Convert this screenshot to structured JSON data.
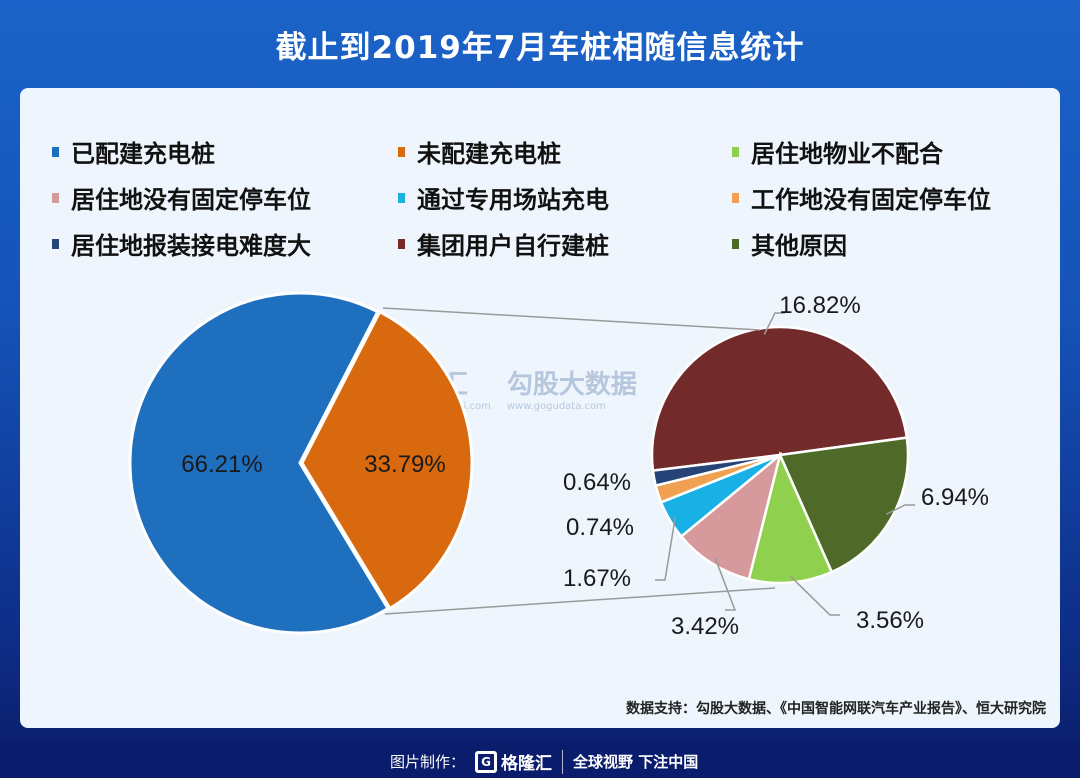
{
  "title": "截止到2019年7月车桩相随信息统计",
  "source": "数据支持：勾股大数据、《中国智能网联汽车产业报告》、恒大研究院",
  "footer": {
    "label": "图片制作：",
    "logo": "格隆汇",
    "slogan": "全球视野 下注中国"
  },
  "watermark": {
    "brand1": "格隆汇",
    "brand1_url": "www.gelonghui.com",
    "brand2": "勾股大数据",
    "brand2_url": "www.gogudata.com"
  },
  "legend": [
    {
      "label": "已配建充电桩",
      "color": "#1f6fbf"
    },
    {
      "label": "未配建充电桩",
      "color": "#d9690f"
    },
    {
      "label": "居住地物业不配合",
      "color": "#8fd14f"
    },
    {
      "label": "居住地没有固定停车位",
      "color": "#d79a9c"
    },
    {
      "label": "通过专用场站充电",
      "color": "#19b0e6"
    },
    {
      "label": "工作地没有固定停车位",
      "color": "#f0a050"
    },
    {
      "label": "居住地报装接电难度大",
      "color": "#264478"
    },
    {
      "label": "集团用户自行建桩",
      "color": "#7a2828"
    },
    {
      "label": "其他原因",
      "color": "#4f6a28"
    }
  ],
  "chart_data": [
    {
      "type": "pie",
      "slices": [
        {
          "name": "已配建充电桩",
          "value": 66.21,
          "label": "66.21%",
          "color": "#1f6fbf"
        },
        {
          "name": "未配建充电桩",
          "value": 33.79,
          "label": "33.79%",
          "color": "#d9690f"
        }
      ]
    },
    {
      "type": "pie",
      "note_breakdown_of": "未配建充电桩",
      "slices": [
        {
          "name": "集团用户自行建桩",
          "value": 16.82,
          "label": "16.82%",
          "color": "#732a2a"
        },
        {
          "name": "其他原因",
          "value": 6.94,
          "label": "6.94%",
          "color": "#4f6a28"
        },
        {
          "name": "居住地物业不配合",
          "value": 3.56,
          "label": "3.56%",
          "color": "#8fd14f"
        },
        {
          "name": "居住地没有固定停车位",
          "value": 3.42,
          "label": "3.42%",
          "color": "#d79a9c"
        },
        {
          "name": "通过专用场站充电",
          "value": 1.67,
          "label": "1.67%",
          "color": "#19b0e6"
        },
        {
          "name": "工作地没有固定停车位",
          "value": 0.74,
          "label": "0.74%",
          "color": "#f0a050"
        },
        {
          "name": "居住地报装接电难度大",
          "value": 0.64,
          "label": "0.64%",
          "color": "#264478"
        }
      ]
    }
  ]
}
